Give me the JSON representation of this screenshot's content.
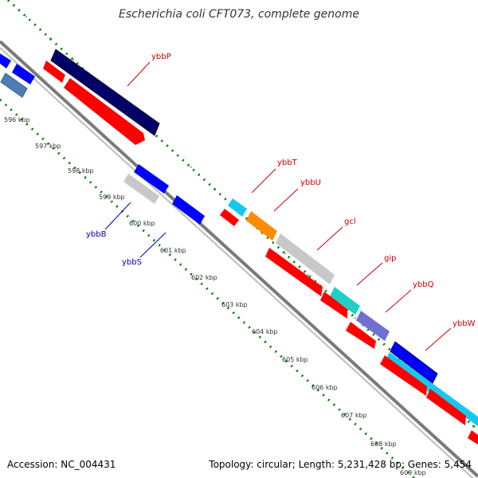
{
  "title": "Escherichia coli CFT073, complete genome",
  "footer": {
    "accession_label": "Accession:",
    "accession": "NC_004431",
    "topology_label": "Topology:",
    "topology": "circular",
    "length_label": "Length:",
    "length": "5,231,428 bp",
    "genes_label": "Genes:",
    "genes": "5,454"
  },
  "tick_labels": [
    "596 kbp",
    "597 kbp",
    "598 kbp",
    "599 kbp",
    "600 kbp",
    "601 kbp",
    "602 kbp",
    "603 kbp",
    "604 kbp",
    "605 kbp",
    "606 kbp",
    "607 kbp",
    "608 kbp",
    "609 kbp"
  ],
  "gene_labels_outer": [
    "ybbP",
    "ybbT",
    "ybbU",
    "gcl",
    "gip",
    "ybbQ",
    "ybbW"
  ],
  "gene_labels_inner": [
    "ybbB",
    "ybbS"
  ],
  "colors": {
    "label_outer": "#cc0000",
    "label_inner": "#0000aa",
    "tick": "#008000",
    "backbone": "#888888",
    "cds_forward": "#ff0000",
    "navy": "#000066",
    "blue": "#0000ff",
    "steelblue": "#4f7fb0",
    "cyan": "#16c8f0",
    "orange": "#ff8c00",
    "grey_feature": "#c8c8c8",
    "teal": "#20d0c8",
    "purple": "#7070d0"
  }
}
